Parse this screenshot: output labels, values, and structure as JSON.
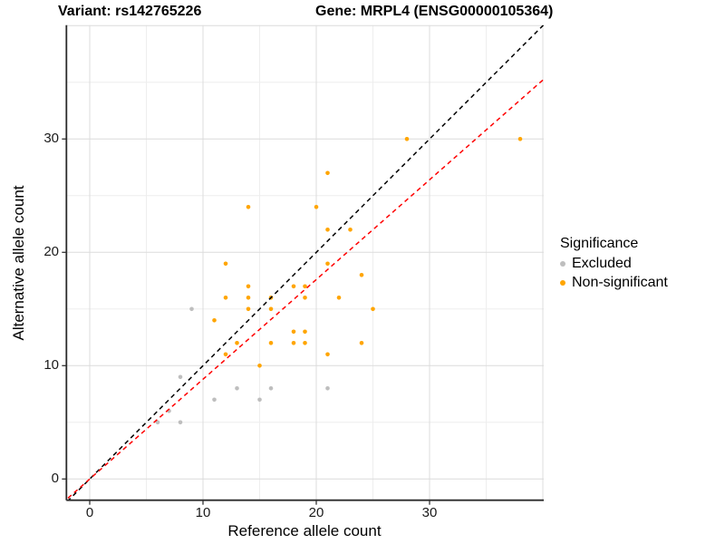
{
  "header": {
    "variant_title": "Variant: rs142765226",
    "gene_title": "Gene: MRPL4 (ENSG00000105364)"
  },
  "axes": {
    "x": {
      "label": "Reference allele count",
      "tick_labels": [
        "0",
        "10",
        "20",
        "30"
      ],
      "tick_values": [
        0,
        10,
        20,
        30
      ],
      "major_gridlines": [
        0,
        10,
        20,
        30,
        40
      ],
      "minor_gridlines": [
        5,
        15,
        25,
        35
      ],
      "range": [
        -2.1,
        40.1
      ]
    },
    "y": {
      "label": "Alternative allele count",
      "tick_labels": [
        "0",
        "10",
        "20",
        "30"
      ],
      "tick_values": [
        0,
        10,
        20,
        30
      ],
      "major_gridlines": [
        0,
        10,
        20,
        30,
        40
      ],
      "minor_gridlines": [
        5,
        15,
        25,
        35
      ],
      "range": [
        -1.9,
        40.0
      ]
    }
  },
  "legend": {
    "title": "Significance",
    "items": [
      {
        "label": "Excluded",
        "color": "#BEBEBE"
      },
      {
        "label": "Non-significant",
        "color": "#FFA500"
      }
    ]
  },
  "colors": {
    "identity_line": "#000000",
    "regression_line": "#FF0000",
    "major_grid": "#DCDCDC",
    "minor_grid": "#EEEEEE",
    "axis_line": "#2b2b2b"
  },
  "chart_data": {
    "type": "scatter",
    "titles": [
      "Variant: rs142765226",
      "Gene: MRPL4 (ENSG00000105364)"
    ],
    "xlabel": "Reference allele count",
    "ylabel": "Alternative allele count",
    "xlim": [
      -2.1,
      40.1
    ],
    "ylim": [
      -1.9,
      40.0
    ],
    "grid": true,
    "legend_position": "right",
    "legend_title": "Significance",
    "series": [
      {
        "name": "Excluded",
        "color": "#BEBEBE",
        "points": [
          [
            6,
            5
          ],
          [
            7,
            6
          ],
          [
            8,
            5
          ],
          [
            8,
            9
          ],
          [
            9,
            15
          ],
          [
            11,
            7
          ],
          [
            13,
            8
          ],
          [
            15,
            7
          ],
          [
            16,
            8
          ],
          [
            21,
            8
          ]
        ]
      },
      {
        "name": "Non-significant",
        "color": "#FFA500",
        "points": [
          [
            11,
            14
          ],
          [
            12,
            11
          ],
          [
            12,
            16
          ],
          [
            12,
            19
          ],
          [
            13,
            12
          ],
          [
            14,
            15
          ],
          [
            14,
            16
          ],
          [
            14,
            17
          ],
          [
            14,
            24
          ],
          [
            15,
            10
          ],
          [
            16,
            12
          ],
          [
            16,
            15
          ],
          [
            16,
            16
          ],
          [
            18,
            12
          ],
          [
            18,
            13
          ],
          [
            18,
            17
          ],
          [
            19,
            12
          ],
          [
            19,
            13
          ],
          [
            19,
            16
          ],
          [
            19,
            17
          ],
          [
            20,
            24
          ],
          [
            21,
            11
          ],
          [
            21,
            19
          ],
          [
            21,
            22
          ],
          [
            21,
            27
          ],
          [
            22,
            16
          ],
          [
            23,
            22
          ],
          [
            24,
            12
          ],
          [
            24,
            18
          ],
          [
            25,
            15
          ],
          [
            28,
            30
          ],
          [
            38,
            30
          ]
        ]
      }
    ],
    "reference_lines": [
      {
        "name": "identity",
        "slope": 1.0,
        "intercept": 0,
        "color": "#000000",
        "style": "dashed"
      },
      {
        "name": "regression",
        "slope": 0.88,
        "intercept": 0,
        "color": "#FF0000",
        "style": "dashed"
      }
    ]
  }
}
